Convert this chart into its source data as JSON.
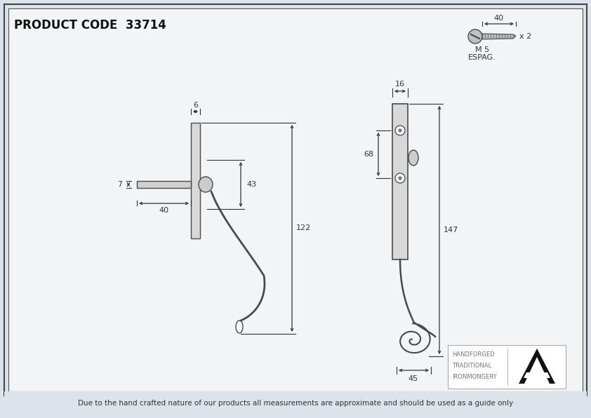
{
  "title": "PRODUCT CODE  33714",
  "bg_color": "#dde3ea",
  "line_color": "#4a4a4a",
  "dim_color": "#333333",
  "border_color": "#555555",
  "footer_text": "Due to the hand crafted nature of our products all measurements are approximate and should be used as a guide only",
  "brand_text1": "HANDFORGED",
  "brand_text2": "TRADITIONAL",
  "brand_text3": "IRONMONGERY",
  "screw_label": "x 2",
  "screw_size": "M 5",
  "screw_type": "ESPAG.",
  "dim_6": "6",
  "dim_7": "7",
  "dim_40_left": "40",
  "dim_43": "43",
  "dim_122": "122",
  "dim_16": "16",
  "dim_68": "68",
  "dim_147": "147",
  "dim_45": "45",
  "dim_40_screw": "40"
}
